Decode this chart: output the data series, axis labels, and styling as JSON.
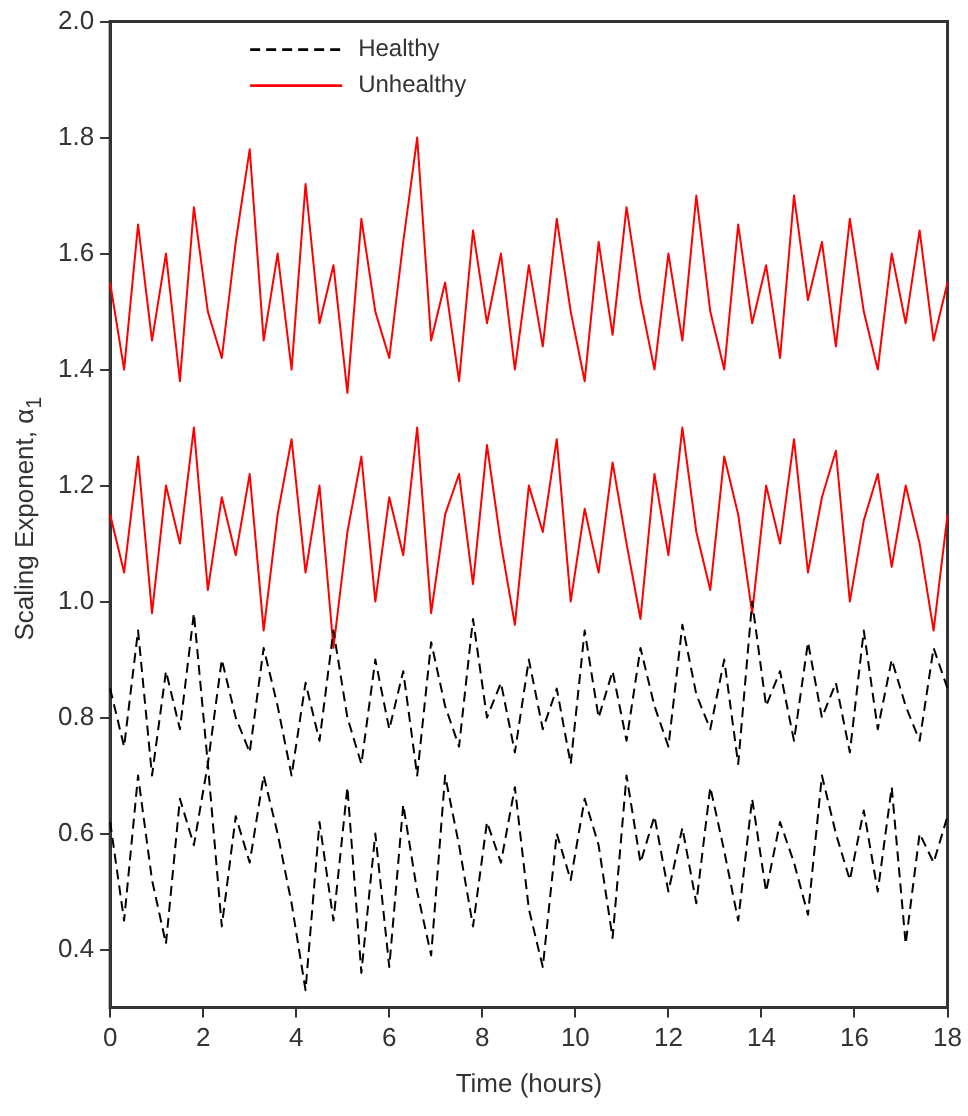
{
  "chart_data": {
    "type": "line",
    "xlabel": "Time (hours)",
    "ylabel": "Scaling Exponent, α$_{1}$",
    "x": [
      0,
      0.3,
      0.6,
      0.9,
      1.2,
      1.5,
      1.8,
      2.1,
      2.4,
      2.7,
      3,
      3.3,
      3.6,
      3.9,
      4.2,
      4.5,
      4.8,
      5.1,
      5.4,
      5.7,
      6,
      6.3,
      6.6,
      6.9,
      7.2,
      7.5,
      7.8,
      8.1,
      8.4,
      8.7,
      9,
      9.3,
      9.6,
      9.9,
      10.2,
      10.5,
      10.8,
      11.1,
      11.4,
      11.7,
      12,
      12.3,
      12.6,
      12.9,
      13.2,
      13.5,
      13.8,
      14.1,
      14.4,
      14.7,
      15,
      15.3,
      15.6,
      15.9,
      16.2,
      16.5,
      16.8,
      17.1,
      17.4,
      17.7,
      18
    ],
    "series": [
      {
        "name": "Healthy",
        "color": "#000000",
        "line_style": "dashed",
        "values": [
          0.62,
          0.45,
          0.7,
          0.52,
          0.41,
          0.66,
          0.58,
          0.72,
          0.44,
          0.63,
          0.55,
          0.7,
          0.6,
          0.48,
          0.33,
          0.62,
          0.45,
          0.68,
          0.36,
          0.6,
          0.37,
          0.65,
          0.5,
          0.39,
          0.7,
          0.58,
          0.44,
          0.62,
          0.55,
          0.68,
          0.47,
          0.37,
          0.6,
          0.52,
          0.66,
          0.58,
          0.42,
          0.7,
          0.55,
          0.63,
          0.5,
          0.61,
          0.48,
          0.68,
          0.57,
          0.45,
          0.66,
          0.5,
          0.62,
          0.55,
          0.46,
          0.7,
          0.6,
          0.52,
          0.64,
          0.5,
          0.68,
          0.41,
          0.6,
          0.55,
          0.63
        ]
      },
      {
        "color": "#000000",
        "line_style": "dashed",
        "values": [
          0.85,
          0.75,
          0.95,
          0.7,
          0.88,
          0.78,
          0.98,
          0.72,
          0.9,
          0.8,
          0.74,
          0.92,
          0.82,
          0.7,
          0.86,
          0.76,
          0.95,
          0.8,
          0.72,
          0.9,
          0.78,
          0.88,
          0.7,
          0.93,
          0.82,
          0.75,
          0.97,
          0.8,
          0.86,
          0.74,
          0.9,
          0.78,
          0.85,
          0.72,
          0.95,
          0.8,
          0.88,
          0.76,
          0.92,
          0.82,
          0.75,
          0.96,
          0.84,
          0.78,
          0.9,
          0.72,
          1.0,
          0.82,
          0.88,
          0.76,
          0.93,
          0.8,
          0.86,
          0.74,
          0.95,
          0.78,
          0.9,
          0.82,
          0.76,
          0.92,
          0.85
        ]
      },
      {
        "name": "Unhealthy",
        "color": "#ff0000",
        "line_style": "solid",
        "values": [
          1.15,
          1.05,
          1.25,
          0.98,
          1.2,
          1.1,
          1.3,
          1.02,
          1.18,
          1.08,
          1.22,
          0.95,
          1.15,
          1.28,
          1.05,
          1.2,
          0.92,
          1.12,
          1.25,
          1.0,
          1.18,
          1.08,
          1.3,
          0.98,
          1.15,
          1.22,
          1.03,
          1.27,
          1.1,
          0.96,
          1.2,
          1.12,
          1.28,
          1.0,
          1.16,
          1.05,
          1.24,
          1.1,
          0.97,
          1.22,
          1.08,
          1.3,
          1.12,
          1.02,
          1.25,
          1.15,
          0.98,
          1.2,
          1.1,
          1.28,
          1.05,
          1.18,
          1.26,
          1.0,
          1.14,
          1.22,
          1.06,
          1.2,
          1.1,
          0.95,
          1.15
        ]
      },
      {
        "color": "#ff0000",
        "line_style": "solid",
        "values": [
          1.55,
          1.4,
          1.65,
          1.45,
          1.6,
          1.38,
          1.68,
          1.5,
          1.42,
          1.62,
          1.78,
          1.45,
          1.6,
          1.4,
          1.72,
          1.48,
          1.58,
          1.36,
          1.66,
          1.5,
          1.42,
          1.62,
          1.8,
          1.45,
          1.55,
          1.38,
          1.64,
          1.48,
          1.6,
          1.4,
          1.58,
          1.44,
          1.66,
          1.5,
          1.38,
          1.62,
          1.46,
          1.68,
          1.52,
          1.4,
          1.6,
          1.45,
          1.7,
          1.5,
          1.4,
          1.65,
          1.48,
          1.58,
          1.42,
          1.7,
          1.52,
          1.62,
          1.44,
          1.66,
          1.5,
          1.4,
          1.6,
          1.48,
          1.64,
          1.45,
          1.55
        ]
      }
    ],
    "xlim": [
      0,
      18
    ],
    "xticks": [
      0,
      2,
      4,
      6,
      8,
      10,
      12,
      14,
      16,
      18
    ],
    "ylim": [
      0.3,
      2.0
    ],
    "yticks": [
      0.4,
      0.6,
      0.8,
      {
        "value": 1,
        "label": "1.0"
      },
      1.2,
      1.4,
      1.6,
      1.8,
      {
        "value": 2,
        "label": "2.0"
      }
    ],
    "grid": false,
    "legend": "top left",
    "marker": "none"
  }
}
